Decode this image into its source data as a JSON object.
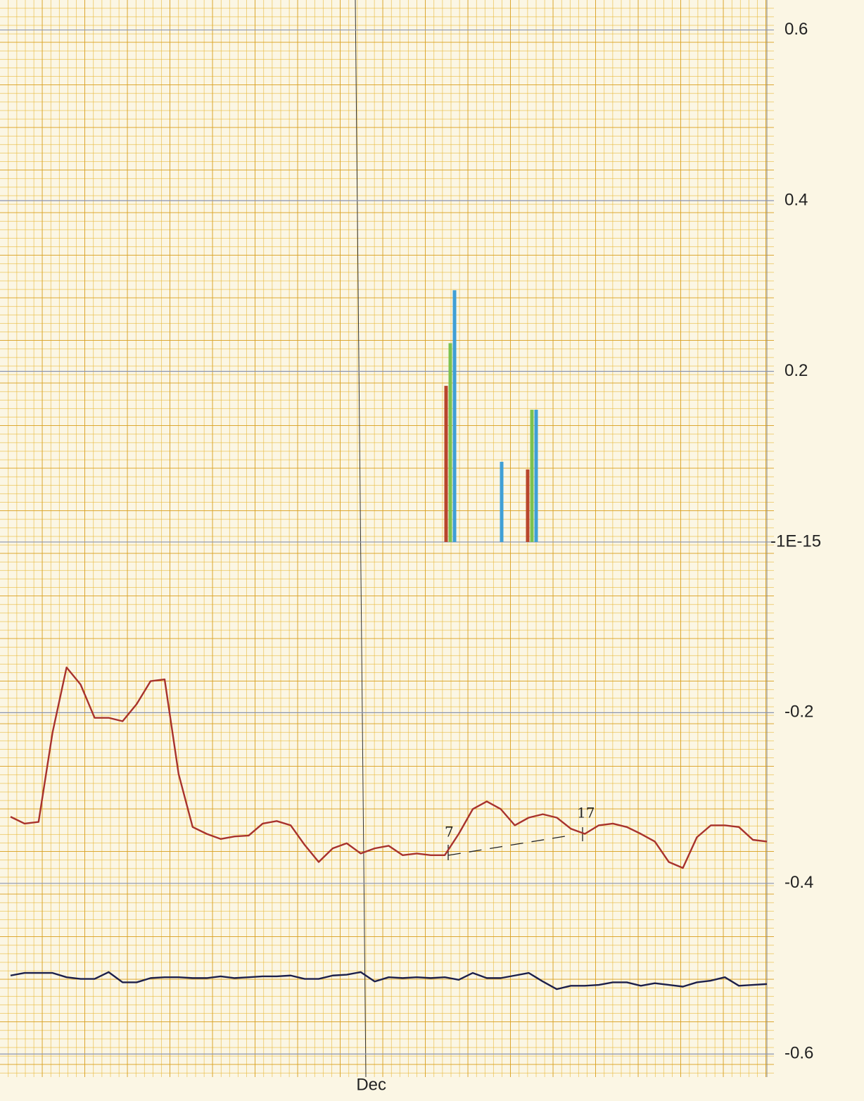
{
  "chart_data": [
    {
      "type": "line",
      "categories": [
        null,
        null,
        null,
        null,
        null,
        null,
        null,
        null,
        null,
        null,
        null,
        null,
        null,
        null,
        null,
        null,
        null,
        null,
        null,
        null,
        null,
        null,
        null,
        null,
        null,
        "Dec",
        null,
        null,
        null,
        null,
        null,
        null,
        null,
        null,
        null,
        null,
        null,
        null,
        null,
        null,
        null,
        null,
        null,
        null,
        null,
        null,
        null,
        null,
        null,
        null,
        null,
        null,
        null,
        null,
        null
      ],
      "series": [
        {
          "color": "#a8322c",
          "values": [
            -0.322,
            -0.33,
            -0.328,
            -0.223,
            -0.147,
            -0.167,
            -0.206,
            -0.206,
            -0.21,
            -0.19,
            -0.163,
            -0.161,
            -0.272,
            -0.334,
            -0.342,
            -0.348,
            -0.345,
            -0.344,
            -0.33,
            -0.327,
            -0.332,
            -0.355,
            -0.375,
            -0.359,
            -0.353,
            -0.365,
            -0.359,
            -0.356,
            -0.367,
            -0.365,
            -0.367,
            -0.367,
            -0.342,
            -0.313,
            -0.304,
            -0.313,
            -0.332,
            -0.323,
            -0.319,
            -0.323,
            -0.336,
            -0.342,
            -0.332,
            -0.33,
            -0.334,
            -0.342,
            -0.351,
            -0.375,
            -0.382,
            -0.346,
            -0.332,
            -0.332,
            -0.334,
            -0.349,
            -0.351
          ]
        },
        {
          "color": "#1c1f4a",
          "values": [
            -0.508,
            -0.505,
            -0.505,
            -0.505,
            -0.51,
            -0.512,
            -0.512,
            -0.504,
            -0.516,
            -0.516,
            -0.511,
            -0.51,
            -0.51,
            -0.511,
            -0.511,
            -0.509,
            -0.511,
            -0.51,
            -0.509,
            -0.509,
            -0.508,
            -0.512,
            -0.512,
            -0.508,
            -0.507,
            -0.504,
            -0.515,
            -0.51,
            -0.511,
            -0.51,
            -0.511,
            -0.51,
            -0.513,
            -0.505,
            -0.511,
            -0.511,
            -0.508,
            -0.505,
            -0.515,
            -0.524,
            -0.52,
            -0.52,
            -0.519,
            -0.516,
            -0.516,
            -0.52,
            -0.517,
            -0.519,
            -0.521,
            -0.516,
            -0.514,
            -0.51,
            -0.52,
            -0.519,
            -0.518
          ]
        }
      ],
      "ylim": [
        -0.627,
        0.631
      ],
      "yticks": [
        0.6,
        0.4,
        0.2,
        {
          "value": -1e-15,
          "label": "-1E-15"
        },
        -0.2,
        -0.4,
        -0.6
      ],
      "grid": true,
      "annotations": [
        "7",
        "17"
      ]
    },
    {
      "type": "bar",
      "categories": [
        null,
        null,
        null
      ],
      "series": [
        {
          "color": "#b8452c",
          "values": [
            0.183,
            null,
            0.085
          ]
        },
        {
          "color": "#7cc24f",
          "values": [
            0.233,
            null,
            0.155
          ]
        },
        {
          "color": "#3f9fd6",
          "values": [
            0.295,
            0.094,
            0.155
          ]
        }
      ]
    }
  ]
}
